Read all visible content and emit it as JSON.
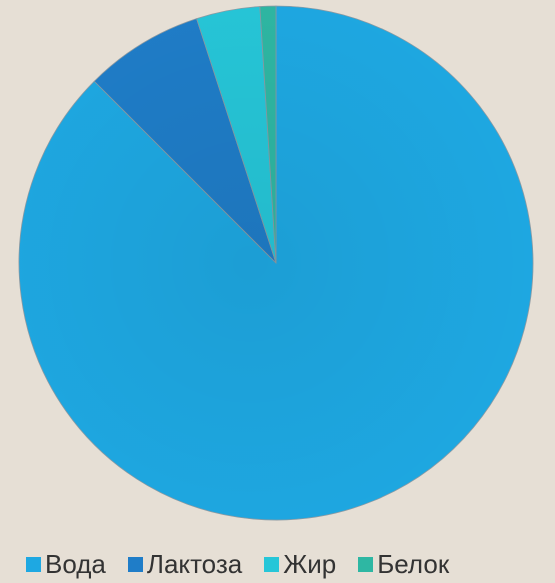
{
  "chart_data": {
    "type": "pie",
    "categories": [
      "Вода",
      "Лактоза",
      "Жир",
      "Белок"
    ],
    "values": [
      87.5,
      7.5,
      4.0,
      1.0
    ],
    "colors": [
      "#1ea8e2",
      "#1f7dc8",
      "#26c6d8",
      "#2eb7a3"
    ],
    "legend": "bottom",
    "start": "12 o'clock",
    "direction": "clockwise"
  }
}
